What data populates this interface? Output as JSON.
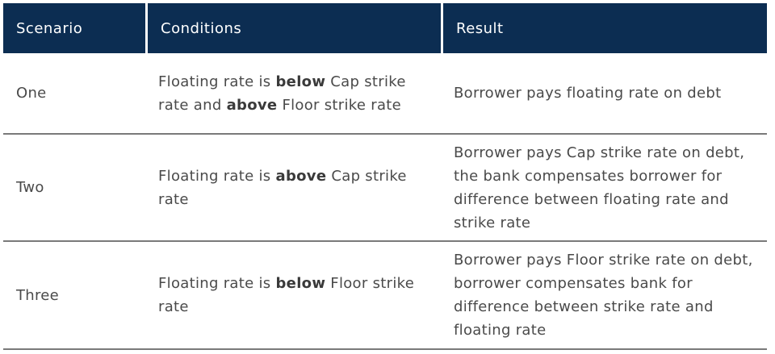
{
  "headers": [
    "Scenario",
    "Conditions",
    "Result"
  ],
  "rows": [
    {
      "scenario": "One",
      "conditions": {
        "pre": "Floating rate is ",
        "b1": "below",
        "mid": " Cap strike rate and ",
        "b2": "above",
        "post": " Floor strike rate"
      },
      "result": "Borrower pays floating rate on debt"
    },
    {
      "scenario": "Two",
      "conditions": {
        "pre": "Floating rate is ",
        "b1": "above",
        "mid": " Cap strike rate",
        "b2": "",
        "post": ""
      },
      "result": "Borrower pays Cap strike rate on debt,  the bank compensates borrower for difference between floating rate and strike rate"
    },
    {
      "scenario": "Three",
      "conditions": {
        "pre": "Floating rate is ",
        "b1": "below",
        "mid": " Floor strike rate",
        "b2": "",
        "post": ""
      },
      "result": "Borrower pays Floor strike rate on debt,  borrower compensates bank for difference between strike rate and floating rate"
    }
  ]
}
